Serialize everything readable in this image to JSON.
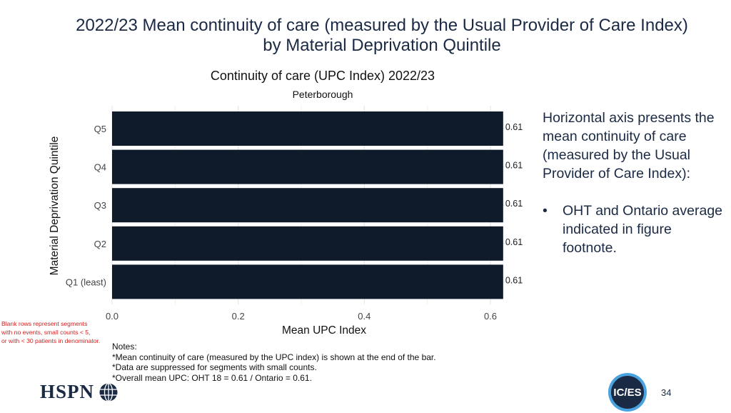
{
  "slide": {
    "title_line1": "2022/23 Mean continuity of care (measured by the Usual Provider of Care Index)",
    "title_line2": "by Material Deprivation Quintile",
    "page_number": "34"
  },
  "chart_data": {
    "type": "bar",
    "orientation": "horizontal",
    "title": "Continuity of care (UPC Index) 2022/23",
    "subtitle": "Peterborough",
    "xlabel": "Mean UPC Index",
    "ylabel": "Material Deprivation Quintile",
    "categories": [
      "Q5",
      "Q4",
      "Q3",
      "Q2",
      "Q1 (least)"
    ],
    "values": [
      0.61,
      0.61,
      0.61,
      0.61,
      0.61
    ],
    "value_labels": [
      "0.61",
      "0.61",
      "0.61",
      "0.61",
      "0.61"
    ],
    "xlim": [
      0,
      0.65
    ],
    "xticks": [
      0.0,
      0.2,
      0.4,
      0.6
    ],
    "xtick_labels": [
      "0.0",
      "0.2",
      "0.4",
      "0.6"
    ],
    "grid": true,
    "legend": "none",
    "bar_color": "#0f1a2b"
  },
  "side_panel": {
    "description": "Horizontal axis presents the mean continuity of care (measured by the Usual Provider of Care Index):",
    "bullet_marker": "•",
    "bullet": "OHT and Ontario average indicated in figure footnote."
  },
  "red_note": {
    "line1": "Blank rows represent segments",
    "line2": "with no events, small counts < 5,",
    "line3": "or with < 30 patients in denominator.",
    "color": "#d62020"
  },
  "notes": {
    "heading": "Notes:",
    "line1": "*Mean continuity of care (measured by the UPC index) is shown at the end of the bar.",
    "line2": "*Data are suppressed for segments with small counts.",
    "line3": "*Overall mean UPC: OHT 18 = 0.61 / Ontario = 0.61."
  },
  "logos": {
    "left": "HSPN",
    "right": "IC/ES",
    "left_icon": "globe-icon"
  }
}
